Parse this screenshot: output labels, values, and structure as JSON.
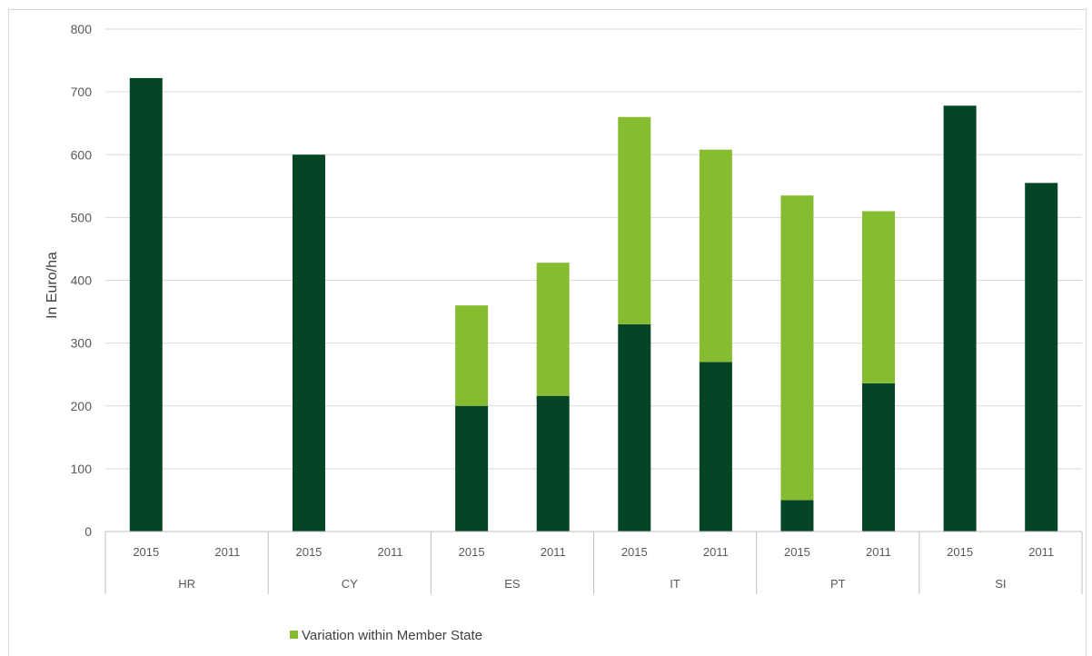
{
  "chart_data": {
    "type": "bar",
    "stacked": true,
    "ylabel": "In Euro/ha",
    "ylim": [
      0,
      800
    ],
    "yticks": [
      0,
      100,
      200,
      300,
      400,
      500,
      600,
      700,
      800
    ],
    "grid": true,
    "legend_position": "bottom",
    "groups": [
      "HR",
      "CY",
      "ES",
      "IT",
      "PT",
      "SI"
    ],
    "categories": [
      "2015",
      "2011",
      "2015",
      "2011",
      "2015",
      "2011",
      "2015",
      "2011",
      "2015",
      "2011",
      "2015",
      "2011"
    ],
    "series": [
      {
        "values": [
          722,
          0,
          600,
          0,
          200,
          216,
          330,
          270,
          50,
          236,
          678,
          555
        ],
        "color": "#034525"
      },
      {
        "name": "Variation within Member State",
        "values": [
          0,
          0,
          0,
          0,
          160,
          212,
          330,
          338,
          485,
          274,
          0,
          0
        ],
        "color": "#86bc30"
      }
    ]
  }
}
